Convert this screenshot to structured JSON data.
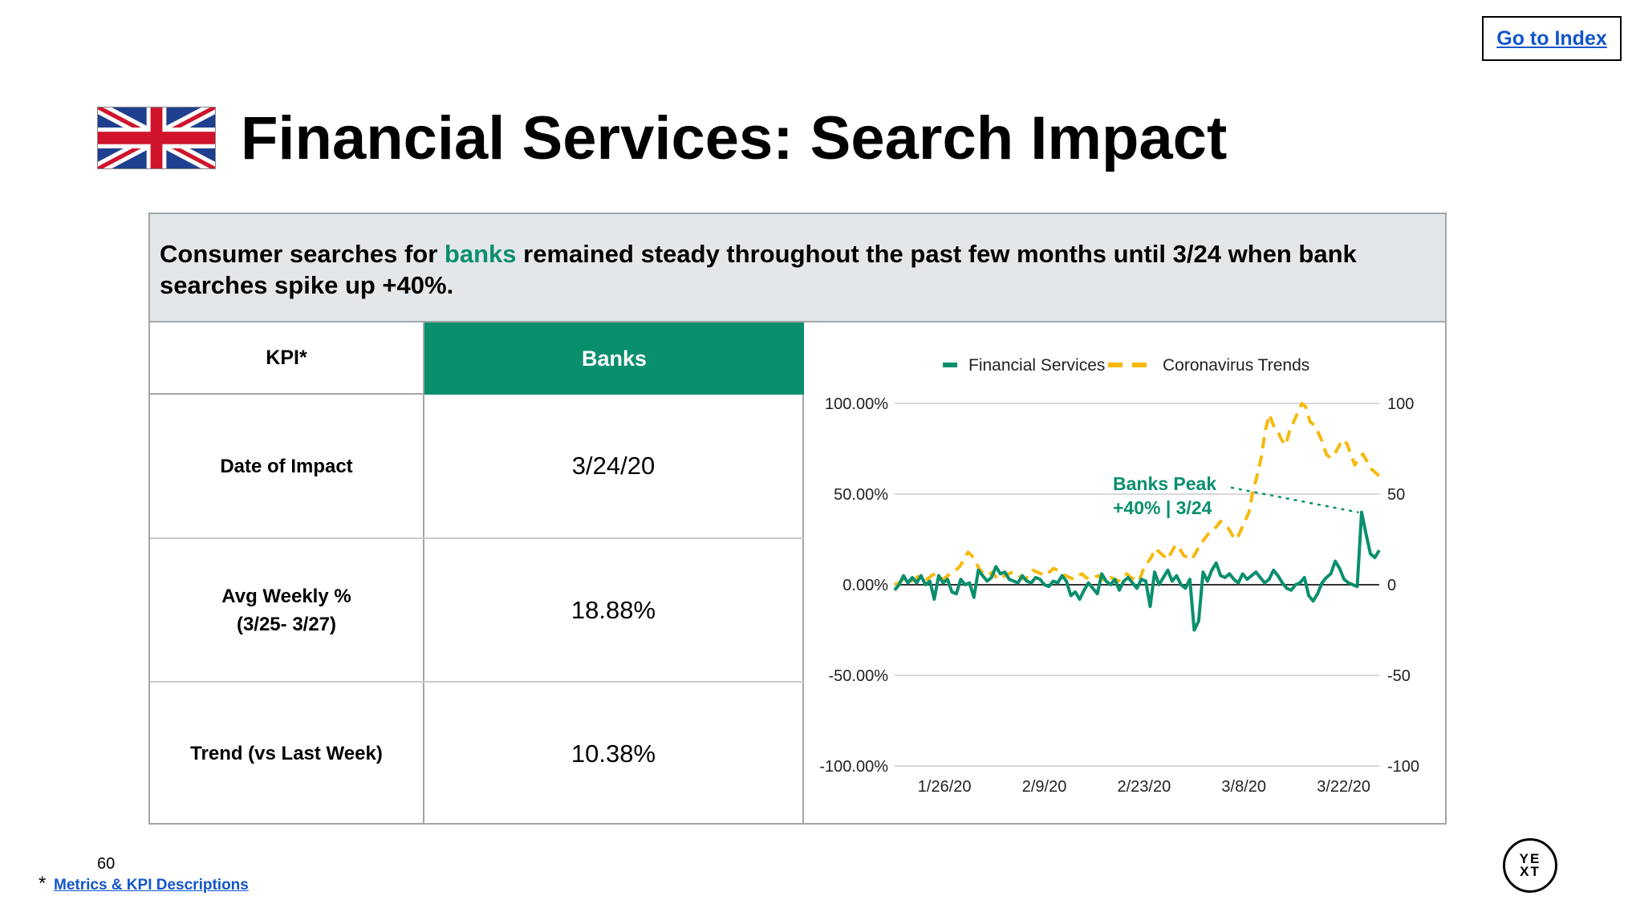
{
  "header": {
    "index_link": "Go to Index",
    "title": "Financial Services: Search Impact",
    "flag_icon": "uk-flag-icon"
  },
  "summary": {
    "part1": "Consumer searches for ",
    "highlight": "banks",
    "part2": " remained steady throughout the past few months until 3/24 when bank searches spike up +40%.",
    "highlight_color": "#0a8f6e"
  },
  "table": {
    "kpi_header": "KPI*",
    "banks_header": "Banks",
    "header_color": "#0a8f6e",
    "rows": [
      {
        "label": "Date of Impact",
        "sublabel": "",
        "value": "3/24/20"
      },
      {
        "label": "Avg Weekly %",
        "sublabel": "(3/25- 3/27)",
        "value": "18.88%"
      },
      {
        "label": "Trend (vs Last Week)",
        "sublabel": "",
        "value": "10.38%"
      }
    ]
  },
  "chart_data": {
    "type": "line",
    "legend_position": "top",
    "grid": true,
    "x_ticks": [
      "1/26/20",
      "2/9/20",
      "2/23/20",
      "3/8/20",
      "3/22/20"
    ],
    "y_left_ticks": [
      "100.00%",
      "50.00%",
      "0.00%",
      "-50.00%",
      "-100.00%"
    ],
    "y_right_ticks": [
      "100",
      "50",
      "0",
      "-50",
      "-100"
    ],
    "ylim_left": [
      -100,
      100
    ],
    "ylim_right": [
      -100,
      100
    ],
    "x_start": "1/19/20",
    "x_end": "3/27/20",
    "annotation": {
      "line1": "Banks Peak",
      "line2": "+40% | 3/24",
      "date": "3/24/20",
      "value": 40
    },
    "series": [
      {
        "name": "Financial Services",
        "color": "#0a8f6e",
        "axis": "left",
        "values": [
          -3,
          0,
          5,
          1,
          4,
          1,
          5,
          0,
          2,
          -8,
          5,
          1,
          3,
          -4,
          -5,
          3,
          0,
          1,
          -7,
          8,
          5,
          2,
          4,
          10,
          6,
          7,
          3,
          2,
          1,
          5,
          2,
          1,
          4,
          3,
          0,
          -1,
          2,
          1,
          5,
          2,
          -6,
          -4,
          -8,
          -3,
          1,
          -2,
          -5,
          6,
          2,
          0,
          3,
          -3,
          2,
          4,
          1,
          -2,
          3,
          2,
          -12,
          7,
          0,
          4,
          8,
          2,
          5,
          0,
          -2,
          3,
          -25,
          -20,
          7,
          2,
          8,
          12,
          5,
          4,
          6,
          3,
          1,
          6,
          3,
          5,
          7,
          4,
          1,
          3,
          8,
          5,
          1,
          -2,
          -3,
          0,
          1,
          4,
          -6,
          -9,
          -5,
          1,
          4,
          6,
          13,
          9,
          3,
          1,
          0,
          -1,
          40,
          28,
          17,
          15,
          19
        ]
      },
      {
        "name": "Coronavirus Trends",
        "color": "#f6b90d",
        "axis": "right",
        "values": [
          0,
          1,
          3,
          4,
          2,
          3,
          5,
          4,
          3,
          5,
          6,
          4,
          3,
          5,
          7,
          8,
          10,
          14,
          18,
          16,
          12,
          8,
          6,
          5,
          7,
          4,
          3,
          5,
          6,
          7,
          6,
          4,
          3,
          5,
          8,
          7,
          6,
          5,
          7,
          9,
          8,
          6,
          5,
          4,
          3,
          5,
          6,
          4,
          3,
          4,
          5,
          3,
          2,
          4,
          3,
          2,
          5,
          6,
          4,
          3,
          2,
          8,
          12,
          15,
          20,
          18,
          16,
          14,
          18,
          22,
          20,
          16,
          15,
          14,
          18,
          22,
          25,
          28,
          30,
          32,
          35,
          33,
          31,
          27,
          25,
          30,
          35,
          40,
          52,
          60,
          70,
          85,
          94,
          88,
          85,
          80,
          77,
          85,
          90,
          95,
          100,
          98,
          90,
          88,
          84,
          79,
          72,
          70,
          72,
          76,
          80,
          78,
          72,
          66,
          70,
          72,
          68,
          64,
          62,
          60
        ]
      }
    ]
  },
  "footer": {
    "page_number": "60",
    "star": "*",
    "link": "Metrics & KPI Descriptions",
    "logo_top": "YE",
    "logo_bottom": "XT"
  }
}
